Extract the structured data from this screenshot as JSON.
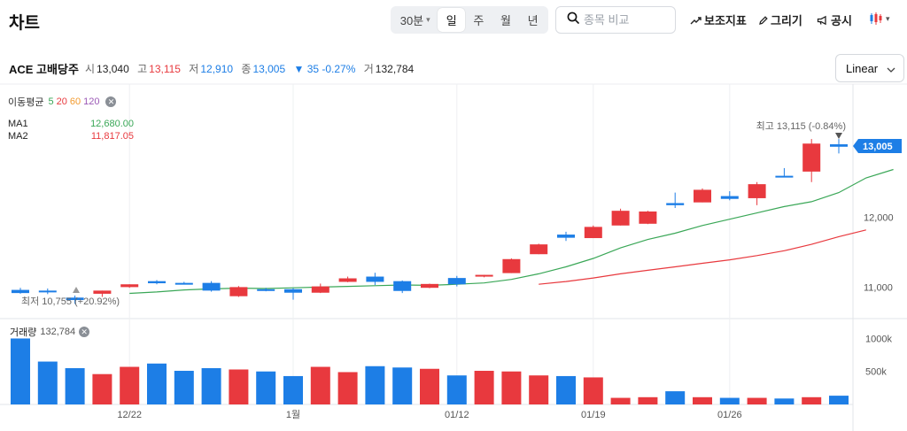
{
  "header": {
    "title": "차트",
    "interval": "30분",
    "periods": [
      "일",
      "주",
      "월",
      "년"
    ],
    "active_period": "일",
    "search_placeholder": "종목 비교",
    "tools": {
      "indicator": "보조지표",
      "draw": "그리기",
      "notice": "공시"
    }
  },
  "stock": {
    "name": "ACE 고배당주",
    "open_label": "시",
    "open": "13,040",
    "high_label": "고",
    "high": "13,115",
    "low_label": "저",
    "low": "12,910",
    "close_label": "종",
    "close": "13,005",
    "change": "▼ 35 -0.27%",
    "volume_label": "거",
    "volume": "132,784"
  },
  "scale_label": "Linear",
  "ma": {
    "title": "이동평균",
    "periods": [
      "5",
      "20",
      "60",
      "120"
    ],
    "period_colors": [
      "#3aa757",
      "#e8393e",
      "#f29a2e",
      "#9b59b6"
    ],
    "rows": [
      {
        "name": "MA1",
        "value": "12,680.00",
        "color": "#3aa757"
      },
      {
        "name": "MA2",
        "value": "11,817.05",
        "color": "#e8393e"
      }
    ]
  },
  "annotations": {
    "high": "최고  13,115 (-0.84%)",
    "low": "최저  10,755 (+20.92%)",
    "last_price": "13,005"
  },
  "volume_legend": {
    "title": "거래량",
    "value": "132,784"
  },
  "colors": {
    "up": "#e8393e",
    "down": "#1d7ee6",
    "ma1": "#3aa757",
    "ma2": "#e8393e"
  },
  "chart_data": {
    "type": "candlestick",
    "price_axis": {
      "ticks": [
        11000,
        12000
      ],
      "tick_labels": [
        "11,000",
        "12,000"
      ],
      "range": [
        10550,
        13900
      ]
    },
    "volume_axis": {
      "ticks": [
        500000,
        1000000
      ],
      "tick_labels": [
        "500k",
        "1000k"
      ],
      "range": [
        0,
        1100000
      ]
    },
    "x_labels": [
      "12/22",
      "1월",
      "01/12",
      "01/19",
      "01/26"
    ],
    "x_label_index": [
      4,
      10,
      16,
      21,
      26
    ],
    "candles": [
      {
        "o": 10960,
        "h": 10990,
        "l": 10905,
        "c": 10915,
        "v": 1000000
      },
      {
        "o": 10950,
        "h": 10980,
        "l": 10900,
        "c": 10925,
        "v": 650000
      },
      {
        "o": 10850,
        "h": 10880,
        "l": 10760,
        "c": 10815,
        "v": 550000
      },
      {
        "o": 10905,
        "h": 10950,
        "l": 10860,
        "c": 10950,
        "v": 460000
      },
      {
        "o": 11000,
        "h": 11040,
        "l": 10990,
        "c": 11040,
        "v": 570000
      },
      {
        "o": 11085,
        "h": 11100,
        "l": 11040,
        "c": 11055,
        "v": 620000
      },
      {
        "o": 11060,
        "h": 11075,
        "l": 11040,
        "c": 11050,
        "v": 510000
      },
      {
        "o": 11060,
        "h": 11085,
        "l": 10935,
        "c": 10950,
        "v": 550000
      },
      {
        "o": 10870,
        "h": 11015,
        "l": 10860,
        "c": 11000,
        "v": 530000
      },
      {
        "o": 10970,
        "h": 10990,
        "l": 10940,
        "c": 10955,
        "v": 500000
      },
      {
        "o": 10970,
        "h": 10985,
        "l": 10820,
        "c": 10920,
        "v": 430000
      },
      {
        "o": 10920,
        "h": 11050,
        "l": 10915,
        "c": 11010,
        "v": 570000
      },
      {
        "o": 11075,
        "h": 11150,
        "l": 11070,
        "c": 11125,
        "v": 490000
      },
      {
        "o": 11150,
        "h": 11205,
        "l": 11030,
        "c": 11075,
        "v": 580000
      },
      {
        "o": 11085,
        "h": 11095,
        "l": 10915,
        "c": 10945,
        "v": 560000
      },
      {
        "o": 10990,
        "h": 11050,
        "l": 10985,
        "c": 11045,
        "v": 540000
      },
      {
        "o": 11130,
        "h": 11160,
        "l": 11010,
        "c": 11040,
        "v": 440000
      },
      {
        "o": 11150,
        "h": 11175,
        "l": 11140,
        "c": 11175,
        "v": 510000
      },
      {
        "o": 11200,
        "h": 11410,
        "l": 11200,
        "c": 11400,
        "v": 500000
      },
      {
        "o": 11470,
        "h": 11620,
        "l": 11470,
        "c": 11610,
        "v": 440000
      },
      {
        "o": 11750,
        "h": 11790,
        "l": 11660,
        "c": 11705,
        "v": 430000
      },
      {
        "o": 11700,
        "h": 11880,
        "l": 11700,
        "c": 11860,
        "v": 410000
      },
      {
        "o": 11880,
        "h": 12120,
        "l": 11880,
        "c": 12090,
        "v": 100000
      },
      {
        "o": 11905,
        "h": 12090,
        "l": 11900,
        "c": 12080,
        "v": 110000
      },
      {
        "o": 12200,
        "h": 12350,
        "l": 12130,
        "c": 12170,
        "v": 200000
      },
      {
        "o": 12210,
        "h": 12410,
        "l": 12210,
        "c": 12390,
        "v": 110000
      },
      {
        "o": 12300,
        "h": 12370,
        "l": 12240,
        "c": 12260,
        "v": 100000
      },
      {
        "o": 12270,
        "h": 12500,
        "l": 12170,
        "c": 12470,
        "v": 100000
      },
      {
        "o": 12590,
        "h": 12700,
        "l": 12570,
        "c": 12580,
        "v": 90000
      },
      {
        "o": 12650,
        "h": 13115,
        "l": 12500,
        "c": 13050,
        "v": 110000
      },
      {
        "o": 13040,
        "h": 13115,
        "l": 12910,
        "c": 13005,
        "v": 132784
      }
    ],
    "ma1": {
      "name": "MA1",
      "start_index": 4,
      "values": [
        10910,
        10930,
        10960,
        10975,
        10985,
        10980,
        10990,
        11000,
        11010,
        11020,
        11030,
        11025,
        11040,
        11060,
        11110,
        11190,
        11290,
        11410,
        11560,
        11680,
        11770,
        11880,
        11970,
        12060,
        12150,
        12220,
        12350,
        12560,
        12680
      ]
    },
    "ma2": {
      "name": "MA2",
      "start_index": 19,
      "values": [
        11040,
        11080,
        11130,
        11190,
        11240,
        11290,
        11340,
        11390,
        11450,
        11520,
        11610,
        11720,
        11817.05
      ]
    }
  }
}
